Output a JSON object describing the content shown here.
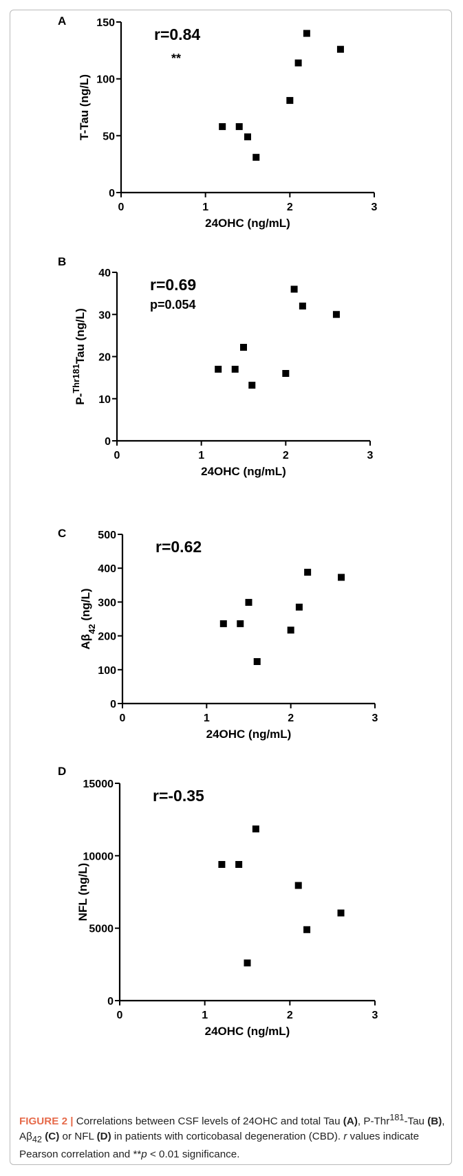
{
  "chart_data": [
    {
      "type": "scatter",
      "panel_label": "A",
      "xlabel": "24OHC (ng/mL)",
      "ylabel": "T-Tau (ng/L)",
      "xlim": [
        0,
        3
      ],
      "ylim": [
        0,
        150
      ],
      "xticks": [
        "0",
        "1",
        "2",
        "3"
      ],
      "yticks": [
        "0",
        "50",
        "100",
        "150"
      ],
      "annotation_r": "r=0.84",
      "annotation_p": "**",
      "series": [
        {
          "x": [
            1.2,
            1.4,
            1.5,
            1.6,
            2.0,
            2.1,
            2.2,
            2.6
          ],
          "y": [
            58,
            58,
            49,
            31,
            81,
            114,
            140,
            126
          ]
        }
      ]
    },
    {
      "type": "scatter",
      "panel_label": "B",
      "xlabel": "24OHC (ng/mL)",
      "ylabel": "P-Thr181Tau (ng/L)",
      "xlim": [
        0,
        3
      ],
      "ylim": [
        0,
        40
      ],
      "xticks": [
        "0",
        "1",
        "2",
        "3"
      ],
      "yticks": [
        "0",
        "10",
        "20",
        "30",
        "40"
      ],
      "annotation_r": "r=0.69",
      "annotation_p": "p=0.054",
      "series": [
        {
          "x": [
            1.2,
            1.4,
            1.5,
            1.6,
            2.0,
            2.1,
            2.2,
            2.6
          ],
          "y": [
            17,
            17,
            22.2,
            13.2,
            16,
            36,
            32,
            30
          ]
        }
      ]
    },
    {
      "type": "scatter",
      "panel_label": "C",
      "xlabel": "24OHC (ng/mL)",
      "ylabel": "Aβ42 (ng/L)",
      "xlim": [
        0,
        3
      ],
      "ylim": [
        0,
        500
      ],
      "xticks": [
        "0",
        "1",
        "2",
        "3"
      ],
      "yticks": [
        "0",
        "100",
        "200",
        "300",
        "400",
        "500"
      ],
      "annotation_r": "r=0.62",
      "annotation_p": "",
      "series": [
        {
          "x": [
            1.2,
            1.4,
            1.5,
            1.6,
            2.0,
            2.1,
            2.2,
            2.6
          ],
          "y": [
            236,
            236,
            299,
            124,
            217,
            285,
            388,
            373
          ]
        }
      ]
    },
    {
      "type": "scatter",
      "panel_label": "D",
      "xlabel": "24OHC (ng/mL)",
      "ylabel": "NFL (ng/L)",
      "xlim": [
        0,
        3
      ],
      "ylim": [
        0,
        15000
      ],
      "xticks": [
        "0",
        "1",
        "2",
        "3"
      ],
      "yticks": [
        "0",
        "5000",
        "10000",
        "15000"
      ],
      "annotation_r": "r=-0.35",
      "annotation_p": "",
      "series": [
        {
          "x": [
            1.2,
            1.4,
            1.5,
            1.6,
            2.1,
            2.2,
            2.6
          ],
          "y": [
            9400,
            9400,
            2600,
            11850,
            7950,
            4900,
            6050
          ]
        }
      ]
    }
  ],
  "caption": {
    "fig_label": "FIGURE 2 |",
    "text_1": "Correlations between CSF levels of 24OHC and total Tau ",
    "ref_a": "(A)",
    "text_2": ", P-Thr",
    "sup_181": "181",
    "text_3": "-Tau ",
    "ref_b": "(B)",
    "text_4": ", Aβ",
    "sub_42": "42",
    "text_5": " ",
    "ref_c": "(C)",
    "text_6": " or NFL ",
    "ref_d": "(D)",
    "text_7": " in patients with corticobasal degeneration (CBD). ",
    "r_italic": "r",
    "text_8": " values indicate Pearson correlation and **",
    "p_italic": "p",
    "text_9": " < 0.01 significance."
  }
}
